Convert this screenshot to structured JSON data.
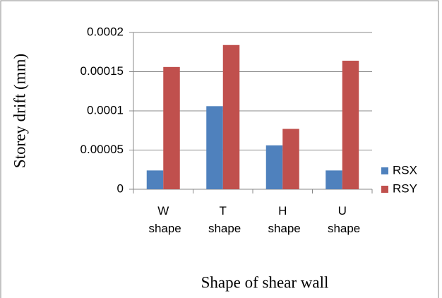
{
  "chart_data": {
    "type": "bar",
    "categories": [
      "W shape",
      "T shape",
      "H shape",
      "U shape"
    ],
    "series": [
      {
        "name": "RSX",
        "color": "#4f81bd",
        "values": [
          2.4e-05,
          0.000106,
          5.6e-05,
          2.4e-05
        ]
      },
      {
        "name": "RSY",
        "color": "#c0504d",
        "values": [
          0.000156,
          0.000184,
          7.7e-05,
          0.000164
        ]
      }
    ],
    "ylim": [
      0,
      0.0002
    ],
    "yticks": [
      0,
      5e-05,
      0.0001,
      0.00015,
      0.0002
    ],
    "grid": true,
    "ylabel": "Storey drift (mm)",
    "xlabel": "Shape of shear wall",
    "legend": "right"
  }
}
